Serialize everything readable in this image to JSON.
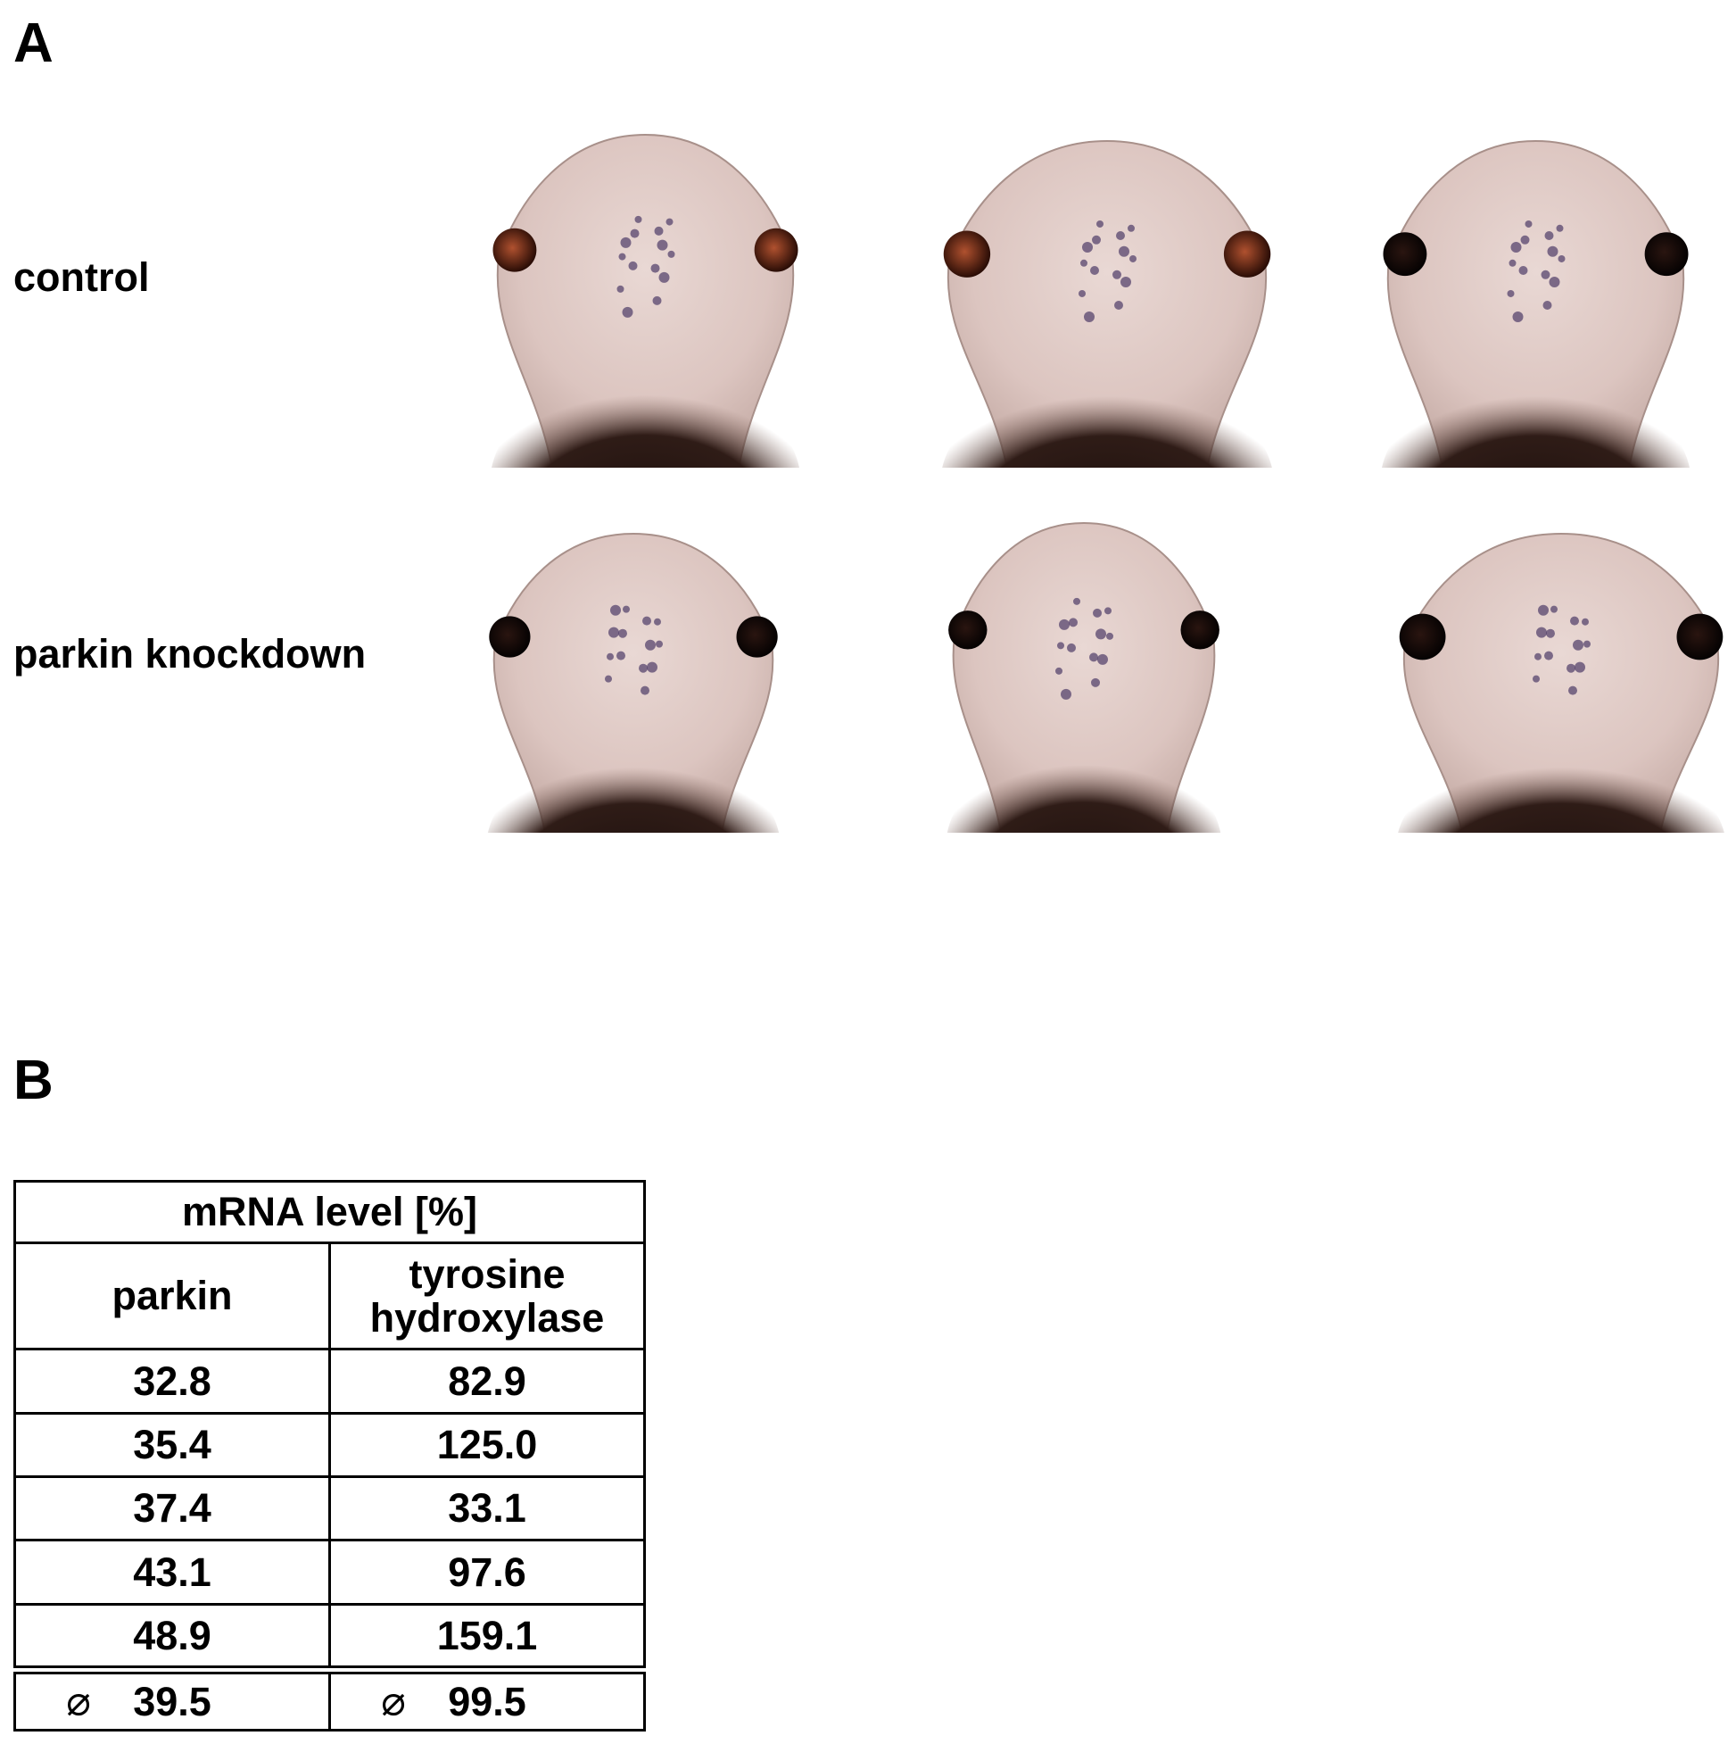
{
  "panel_a": {
    "label": "A",
    "rows": [
      "control",
      "parkin knockdown"
    ]
  },
  "panel_b": {
    "label": "B",
    "table": {
      "title": "mRNA level [%]",
      "columns": [
        "parkin",
        "tyrosine hydroxylase"
      ],
      "rows": [
        [
          "32.8",
          "82.9"
        ],
        [
          "35.4",
          "125.0"
        ],
        [
          "37.4",
          "33.1"
        ],
        [
          "43.1",
          "97.6"
        ],
        [
          "48.9",
          "159.1"
        ]
      ],
      "mean_marker": "⌀",
      "mean": [
        "39.5",
        "99.5"
      ]
    }
  }
}
